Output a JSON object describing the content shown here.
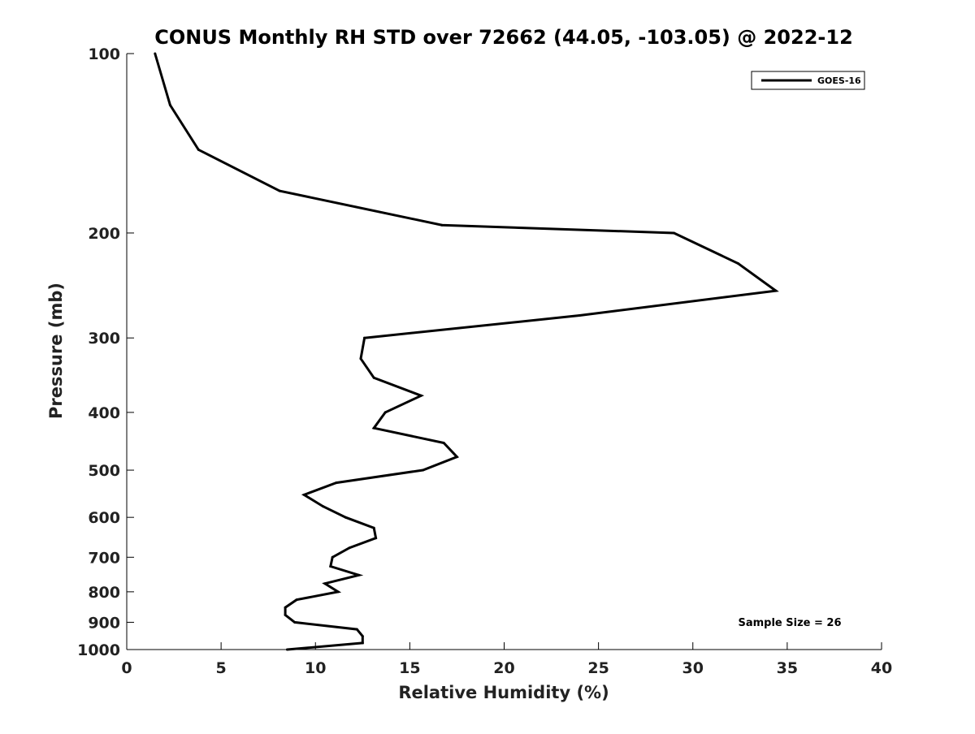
{
  "chart_data": {
    "type": "line",
    "title": "CONUS Monthly RH STD over 72662 (44.05, -103.05) @ 2022-12",
    "xlabel": "Relative Humidity (%)",
    "ylabel": "Pressure (mb)",
    "xlim": [
      0,
      40
    ],
    "ylim": [
      100,
      1000
    ],
    "y_scale": "log",
    "y_reversed": true,
    "grid": false,
    "legend_position": "top-right",
    "x_ticks": [
      "0",
      "5",
      "10",
      "15",
      "20",
      "25",
      "30",
      "35",
      "40"
    ],
    "y_ticks": [
      "100",
      "200",
      "300",
      "400",
      "500",
      "600",
      "700",
      "800",
      "900",
      "1000"
    ],
    "annotation": "Sample Size = 26",
    "series": [
      {
        "name": "GOES-16",
        "color": "#000000",
        "points": [
          {
            "rh": 1.5,
            "p": 100
          },
          {
            "rh": 2.3,
            "p": 122
          },
          {
            "rh": 3.8,
            "p": 145
          },
          {
            "rh": 8.1,
            "p": 170
          },
          {
            "rh": 16.7,
            "p": 194
          },
          {
            "rh": 29.0,
            "p": 200
          },
          {
            "rh": 32.4,
            "p": 225
          },
          {
            "rh": 34.4,
            "p": 250
          },
          {
            "rh": 24.0,
            "p": 275
          },
          {
            "rh": 12.6,
            "p": 300
          },
          {
            "rh": 12.4,
            "p": 325
          },
          {
            "rh": 13.1,
            "p": 350
          },
          {
            "rh": 15.6,
            "p": 375
          },
          {
            "rh": 13.7,
            "p": 400
          },
          {
            "rh": 13.1,
            "p": 425
          },
          {
            "rh": 16.8,
            "p": 450
          },
          {
            "rh": 17.5,
            "p": 475
          },
          {
            "rh": 15.7,
            "p": 500
          },
          {
            "rh": 11.1,
            "p": 525
          },
          {
            "rh": 9.4,
            "p": 550
          },
          {
            "rh": 10.4,
            "p": 575
          },
          {
            "rh": 11.6,
            "p": 600
          },
          {
            "rh": 13.1,
            "p": 625
          },
          {
            "rh": 13.2,
            "p": 650
          },
          {
            "rh": 11.8,
            "p": 675
          },
          {
            "rh": 10.9,
            "p": 700
          },
          {
            "rh": 10.8,
            "p": 725
          },
          {
            "rh": 12.3,
            "p": 750
          },
          {
            "rh": 10.5,
            "p": 775
          },
          {
            "rh": 11.2,
            "p": 800
          },
          {
            "rh": 9.0,
            "p": 825
          },
          {
            "rh": 8.4,
            "p": 850
          },
          {
            "rh": 8.4,
            "p": 875
          },
          {
            "rh": 8.9,
            "p": 900
          },
          {
            "rh": 12.2,
            "p": 925
          },
          {
            "rh": 12.5,
            "p": 950
          },
          {
            "rh": 12.5,
            "p": 975
          },
          {
            "rh": 8.5,
            "p": 1000
          }
        ]
      }
    ]
  }
}
